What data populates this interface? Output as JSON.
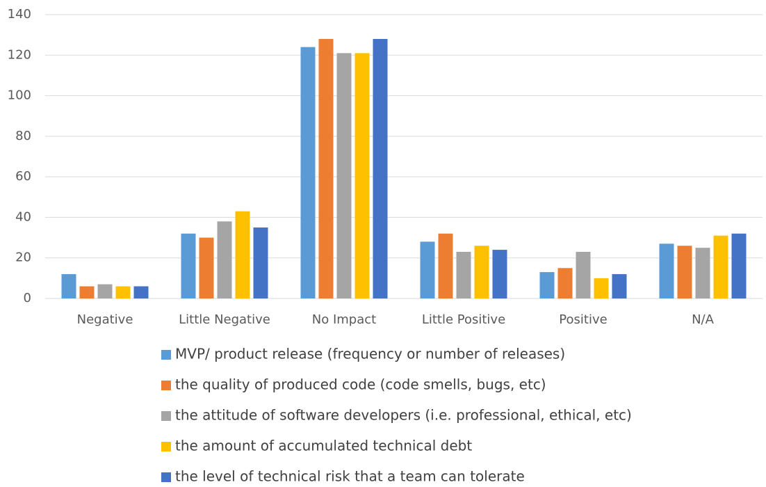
{
  "chart_data": {
    "type": "bar",
    "categories": [
      "Negative",
      "Little Negative",
      "No Impact",
      "Little Positive",
      "Positive",
      "N/A"
    ],
    "series": [
      {
        "name": "MVP/ product release (frequency or number of releases)",
        "color": "#5b9bd5",
        "values": [
          12,
          32,
          124,
          28,
          13,
          27
        ]
      },
      {
        "name": "the quality of produced code (code smells, bugs, etc)",
        "color": "#ed7d31",
        "values": [
          6,
          30,
          128,
          32,
          15,
          26
        ]
      },
      {
        "name": "the attitude of software developers (i.e. professional, ethical, etc)",
        "color": "#a5a5a5",
        "values": [
          7,
          38,
          121,
          23,
          23,
          25
        ]
      },
      {
        "name": "the amount of accumulated technical debt",
        "color": "#ffc000",
        "values": [
          6,
          43,
          121,
          26,
          10,
          31
        ]
      },
      {
        "name": "the level of technical risk that a team can tolerate",
        "color": "#4472c4",
        "values": [
          6,
          35,
          128,
          24,
          12,
          32
        ]
      }
    ],
    "ylim": [
      0,
      140
    ],
    "yticks": [
      0,
      20,
      40,
      60,
      80,
      100,
      120,
      140
    ],
    "grid": true,
    "legend": "bottom"
  }
}
